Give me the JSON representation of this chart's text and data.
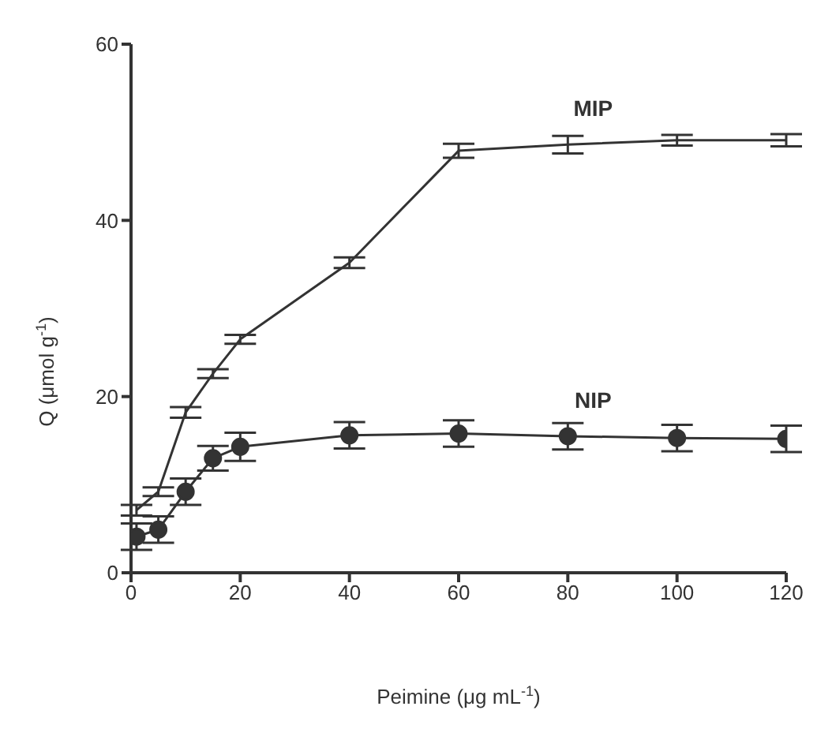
{
  "chart_data": {
    "type": "line",
    "xlabel": "Peimine (μg mL$^{-1}$)",
    "ylabel": "Q (μmol g$^{-1}$)",
    "x": [
      1,
      5,
      10,
      15,
      20,
      40,
      60,
      80,
      100,
      120
    ],
    "xlim": [
      0,
      120
    ],
    "xticks": [
      0,
      20,
      40,
      60,
      80,
      100,
      120
    ],
    "ylim": [
      0,
      60
    ],
    "yticks": [
      0,
      20,
      40,
      60
    ],
    "grid": false,
    "legend": false,
    "line_style": "solid",
    "series": [
      {
        "name": "MIP",
        "color": "#333333",
        "marker": "none",
        "values": [
          7.1,
          9.2,
          18.2,
          22.6,
          26.5,
          35.2,
          47.9,
          48.6,
          49.1,
          49.1
        ],
        "errors": [
          0.6,
          0.5,
          0.6,
          0.5,
          0.5,
          0.6,
          0.8,
          1,
          0.6,
          0.7
        ]
      },
      {
        "name": "NIP",
        "color": "#333333",
        "marker": "circle",
        "values": [
          4.1,
          4.9,
          9.2,
          13,
          14.3,
          15.6,
          15.8,
          15.5,
          15.3,
          15.2
        ],
        "errors": [
          1.5,
          1.5,
          1.5,
          1.4,
          1.6,
          1.5,
          1.5,
          1.5,
          1.5,
          1.5
        ]
      }
    ]
  }
}
